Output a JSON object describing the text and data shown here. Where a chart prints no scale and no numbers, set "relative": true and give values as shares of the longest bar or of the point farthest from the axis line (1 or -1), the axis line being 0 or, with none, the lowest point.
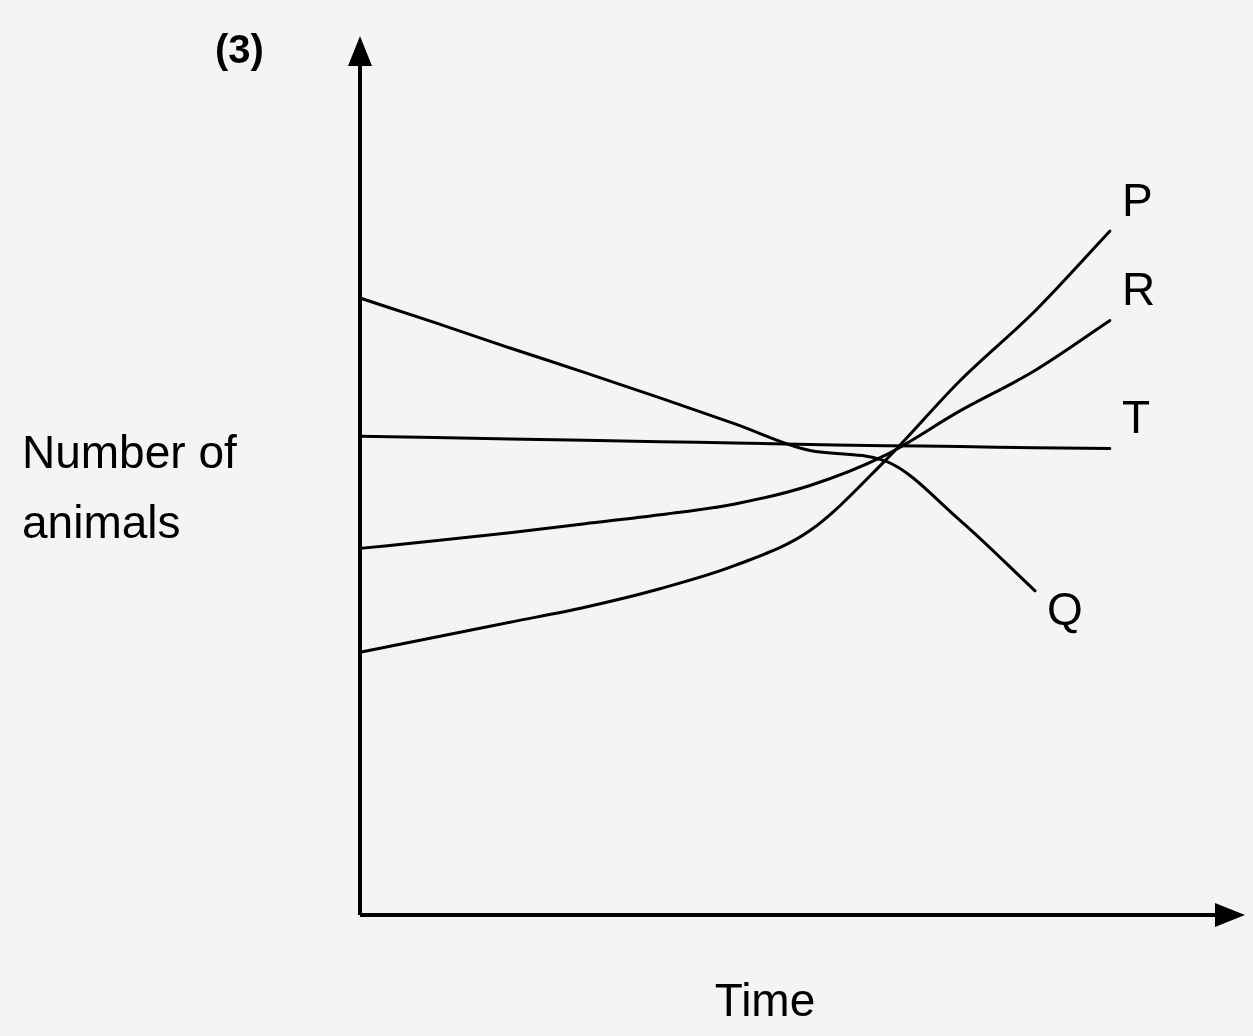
{
  "chart_data": {
    "type": "line",
    "title": "(3)",
    "xlabel": "Time",
    "ylabel": "Number of animals",
    "relative": true,
    "legend": false,
    "marker": "none",
    "categories": [
      null,
      null,
      null,
      null,
      null,
      null,
      null,
      null,
      null,
      null,
      null
    ],
    "series": [
      {
        "name": "P",
        "color": "#000000",
        "values": [
          0.384,
          0.406,
          0.428,
          0.45,
          0.477,
          0.511,
          0.562,
          0.664,
          0.781,
          0.883,
          1
        ]
      },
      {
        "name": "R",
        "color": "#000000",
        "values": [
          0.536,
          0.547,
          0.559,
          0.572,
          0.585,
          0.601,
          0.628,
          0.672,
          0.737,
          0.796,
          0.869
        ]
      },
      {
        "name": "T",
        "color": "#000000",
        "values": [
          0.7,
          0.698,
          0.696,
          0.694,
          0.692,
          0.69,
          0.688,
          0.686,
          0.685,
          0.683,
          0.682
        ]
      },
      {
        "name": "Q",
        "color": "#000000",
        "values": [
          0.902,
          0.866,
          0.829,
          0.793,
          0.756,
          0.718,
          0.679,
          0.664,
          0.577,
          0.474,
          null
        ]
      }
    ]
  }
}
